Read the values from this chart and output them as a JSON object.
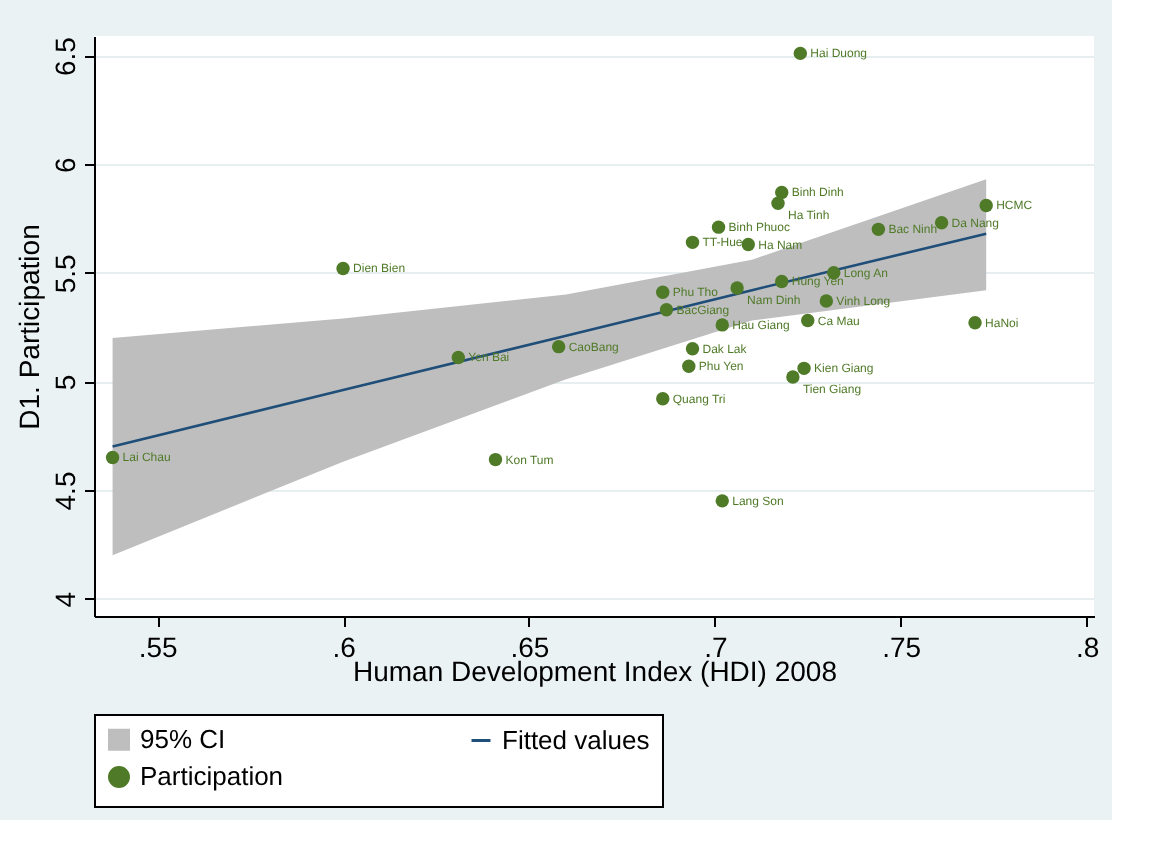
{
  "chart_data": {
    "type": "scatter",
    "xlabel": "Human Development Index (HDI) 2008",
    "ylabel": "D1. Participation",
    "xlim": [
      0.533,
      0.802
    ],
    "ylim": [
      3.92,
      6.59
    ],
    "xticks": [
      {
        "value": 0.55,
        "label": ".55"
      },
      {
        "value": 0.6,
        "label": ".6"
      },
      {
        "value": 0.65,
        "label": ".65"
      },
      {
        "value": 0.7,
        "label": ".7"
      },
      {
        "value": 0.75,
        "label": ".75"
      },
      {
        "value": 0.8,
        "label": ".8"
      }
    ],
    "yticks": [
      4,
      4.5,
      5,
      5.5,
      6,
      6.5
    ],
    "grid": "y",
    "legend": "bottom",
    "series": [
      {
        "name": "95% CI",
        "type": "area",
        "color": "#bebebe"
      },
      {
        "name": "Fitted values",
        "type": "line",
        "color": "#1f4e79",
        "x": [
          0.538,
          0.6,
          0.66,
          0.71,
          0.773
        ],
        "values": [
          4.7,
          4.96,
          5.21,
          5.42,
          5.68
        ],
        "lower": [
          4.2,
          4.63,
          5.01,
          5.28,
          5.42
        ],
        "upper": [
          5.2,
          5.29,
          5.4,
          5.56,
          5.93
        ]
      },
      {
        "name": "Participation",
        "type": "scatter",
        "color": "#4f7a28",
        "marker": "circle",
        "x": [
          0.538,
          0.6,
          0.631,
          0.641,
          0.658,
          0.723,
          0.718,
          0.717,
          0.701,
          0.694,
          0.709,
          0.761,
          0.744,
          0.773,
          0.686,
          0.706,
          0.718,
          0.732,
          0.687,
          0.73,
          0.702,
          0.725,
          0.77,
          0.694,
          0.693,
          0.724,
          0.721,
          0.686,
          0.702
        ],
        "values": [
          4.65,
          5.52,
          5.11,
          4.64,
          5.16,
          6.51,
          5.87,
          5.82,
          5.71,
          5.64,
          5.63,
          5.73,
          5.7,
          5.81,
          5.41,
          5.43,
          5.46,
          5.5,
          5.33,
          5.37,
          5.26,
          5.28,
          5.27,
          5.15,
          5.07,
          5.06,
          5.02,
          4.92,
          4.45
        ]
      }
    ],
    "annotations": [
      {
        "text": "Lai Chau",
        "x": 0.538,
        "y": 4.65
      },
      {
        "text": "Dien Bien",
        "x": 0.6,
        "y": 5.52
      },
      {
        "text": "Yen Bai",
        "x": 0.631,
        "y": 5.11
      },
      {
        "text": "Kon Tum",
        "x": 0.641,
        "y": 4.64
      },
      {
        "text": "CaoBang",
        "x": 0.658,
        "y": 5.16
      },
      {
        "text": "Hai Duong",
        "x": 0.723,
        "y": 6.51
      },
      {
        "text": "Binh Dinh",
        "x": 0.718,
        "y": 5.87
      },
      {
        "text": "Ha Tinh",
        "x": 0.717,
        "y": 5.82
      },
      {
        "text": "Binh Phuoc",
        "x": 0.701,
        "y": 5.71
      },
      {
        "text": "TT-Hue",
        "x": 0.694,
        "y": 5.64
      },
      {
        "text": "Ha Nam",
        "x": 0.709,
        "y": 5.63
      },
      {
        "text": "Da Nang",
        "x": 0.761,
        "y": 5.73
      },
      {
        "text": "Bac Ninh",
        "x": 0.744,
        "y": 5.7
      },
      {
        "text": "HCMC",
        "x": 0.773,
        "y": 5.81
      },
      {
        "text": "Phu Tho",
        "x": 0.686,
        "y": 5.41
      },
      {
        "text": "Nam Dinh",
        "x": 0.706,
        "y": 5.43
      },
      {
        "text": "Hung Yen",
        "x": 0.718,
        "y": 5.46
      },
      {
        "text": "Long An",
        "x": 0.732,
        "y": 5.5
      },
      {
        "text": "BacGiang",
        "x": 0.687,
        "y": 5.33
      },
      {
        "text": "Vinh Long",
        "x": 0.73,
        "y": 5.37
      },
      {
        "text": "Hau Giang",
        "x": 0.702,
        "y": 5.26
      },
      {
        "text": "Ca Mau",
        "x": 0.725,
        "y": 5.28
      },
      {
        "text": "HaNoi",
        "x": 0.77,
        "y": 5.27
      },
      {
        "text": "Dak Lak",
        "x": 0.694,
        "y": 5.15
      },
      {
        "text": "Phu Yen",
        "x": 0.693,
        "y": 5.07
      },
      {
        "text": "Kien Giang",
        "x": 0.724,
        "y": 5.06
      },
      {
        "text": "Tien Giang",
        "x": 0.721,
        "y": 5.02
      },
      {
        "text": "Quang Tri",
        "x": 0.686,
        "y": 4.92
      },
      {
        "text": "Lang Son",
        "x": 0.702,
        "y": 4.45
      }
    ]
  }
}
